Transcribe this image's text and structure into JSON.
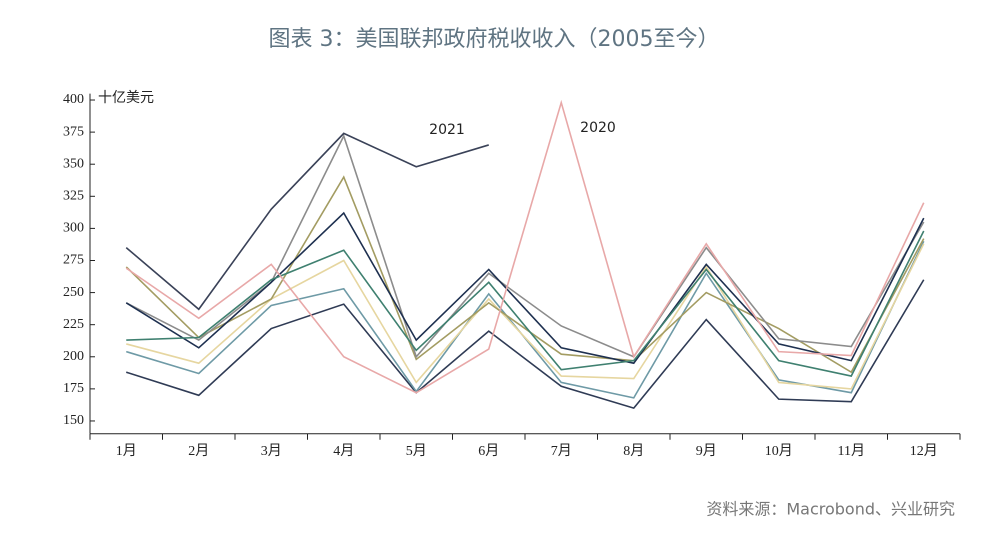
{
  "chart_data": {
    "type": "line",
    "title": "图表 3：美国联邦政府税收收入（2005至今）",
    "y_label": "十亿美元",
    "source": "资料来源：Macrobond、兴业研究",
    "categories": [
      "1月",
      "2月",
      "3月",
      "4月",
      "5月",
      "6月",
      "7月",
      "8月",
      "9月",
      "10月",
      "11月",
      "12月"
    ],
    "ylim": [
      140,
      405
    ],
    "yticks": [
      150,
      175,
      200,
      225,
      250,
      275,
      300,
      325,
      350,
      375,
      400
    ],
    "series": [
      {
        "color": "#2f3b55",
        "values": [
          188,
          170,
          222,
          241,
          172,
          220,
          177,
          160,
          229,
          167,
          165,
          260
        ]
      },
      {
        "color": "#6e9aa6",
        "values": [
          204,
          187,
          240,
          253,
          173,
          249,
          180,
          168,
          265,
          182,
          172,
          290
        ]
      },
      {
        "color": "#e6d6a0",
        "values": [
          210,
          195,
          245,
          275,
          180,
          245,
          185,
          183,
          270,
          180,
          175,
          288
        ]
      },
      {
        "color": "#a39c62",
        "values": [
          270,
          215,
          245,
          340,
          198,
          242,
          202,
          197,
          250,
          222,
          188,
          292
        ]
      },
      {
        "color": "#8c8c8c",
        "values": [
          242,
          213,
          258,
          372,
          200,
          265,
          224,
          200,
          285,
          214,
          208,
          305
        ]
      },
      {
        "color": "#1e3050",
        "values": [
          242,
          207,
          258,
          312,
          213,
          268,
          207,
          195,
          272,
          210,
          197,
          308
        ]
      },
      {
        "color": "#3f8070",
        "values": [
          213,
          215,
          260,
          283,
          205,
          258,
          190,
          197,
          268,
          197,
          185,
          298
        ]
      },
      {
        "name": "2020",
        "color": "#e8a8a8",
        "values": [
          269,
          230,
          272,
          200,
          172,
          206,
          398,
          200,
          288,
          204,
          201,
          320
        ]
      },
      {
        "name": "2021",
        "color": "#3a4258",
        "values": [
          285,
          237,
          315,
          374,
          348,
          365,
          null,
          null,
          null,
          null,
          null,
          null
        ]
      }
    ]
  }
}
